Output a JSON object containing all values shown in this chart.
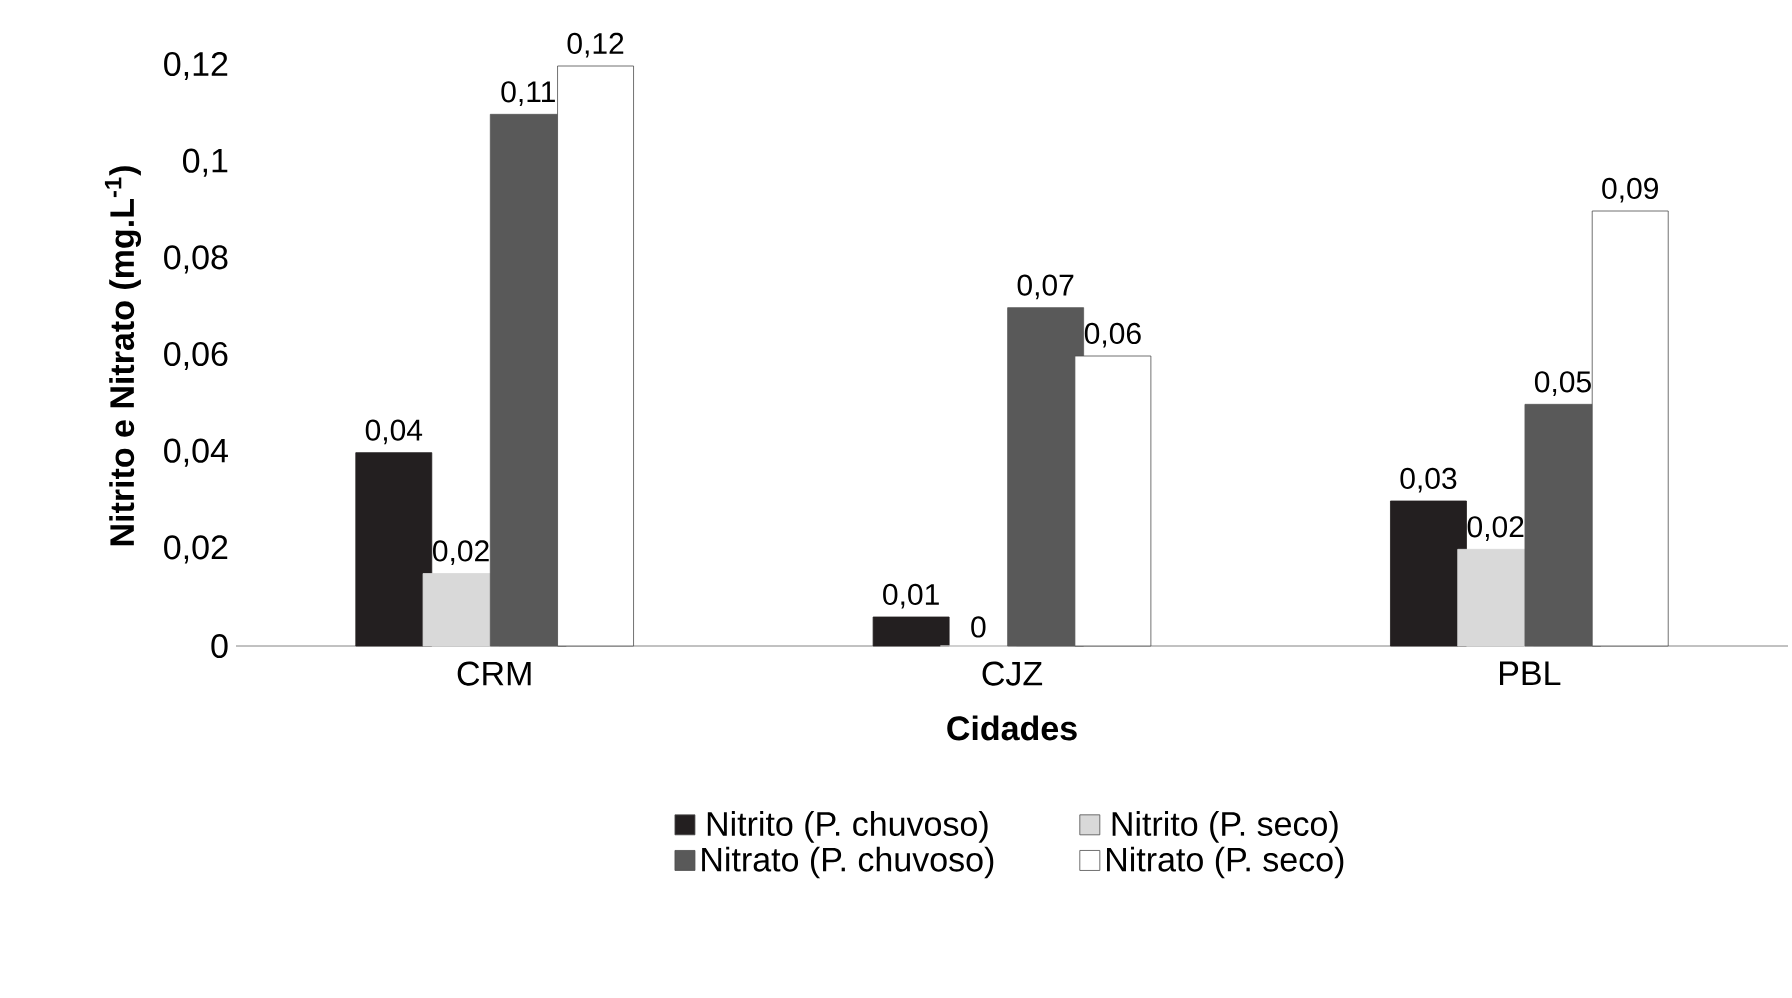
{
  "chart_data": {
    "type": "bar",
    "xlabel": "Cidades",
    "ylabel": "Nitrito e Nitrato  (mg.L$^{-1}$)",
    "categories": [
      "CRM",
      "CJZ",
      "PBL"
    ],
    "series": [
      {
        "name": "Nitrito (P. chuvoso)",
        "color": "#231f20",
        "values": [
          0.04,
          0.006,
          0.03
        ],
        "value_labels": [
          "0,04",
          "0,01",
          "0,03"
        ]
      },
      {
        "name": "Nitrito (P. seco)",
        "color": "#d9d9d9",
        "values": [
          0.015,
          0,
          0.02
        ],
        "value_labels": [
          "0,02",
          "0",
          "0,02"
        ]
      },
      {
        "name": "Nitrato (P. chuvoso)",
        "color": "#595959",
        "values": [
          0.11,
          0.07,
          0.05
        ],
        "value_labels": [
          "0,11",
          "0,07",
          "0,05"
        ]
      },
      {
        "name": "Nitrato (P. seco)",
        "color": "#ffffff",
        "values": [
          0.12,
          0.06,
          0.09
        ],
        "value_labels": [
          "0,12",
          "0,06",
          "0,09"
        ]
      }
    ],
    "ylim": [
      0,
      0.12
    ],
    "yticks": [
      {
        "value": 0,
        "label": "0"
      },
      {
        "value": 0.02,
        "label": "0,02"
      },
      {
        "value": 0.04,
        "label": "0,04"
      },
      {
        "value": 0.06,
        "label": "0,06"
      },
      {
        "value": 0.08,
        "label": "0,08"
      },
      {
        "value": 0.1,
        "label": "0,1"
      },
      {
        "value": 0.12,
        "label": "0,12"
      }
    ],
    "grid": false,
    "legend": "bottom"
  }
}
